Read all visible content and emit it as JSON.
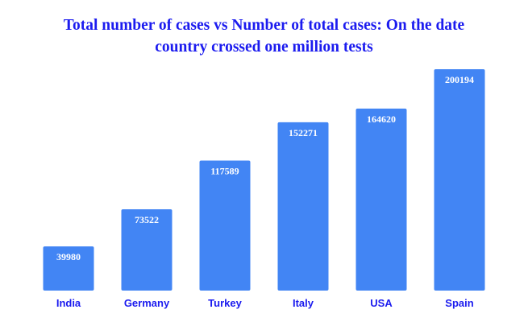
{
  "chart_data": {
    "type": "bar",
    "title_line1": "Total number of cases vs Number of total cases: On the date",
    "title_line2": "country crossed one million tests",
    "categories": [
      "India",
      "Germany",
      "Turkey",
      "Italy",
      "USA",
      "Spain"
    ],
    "values": [
      39980,
      73522,
      117589,
      152271,
      164620,
      200194
    ],
    "ylim": [
      0,
      200194
    ],
    "grid": false,
    "legend": "none",
    "bar_color": "#4285f4",
    "label_color": "#ffffff",
    "category_color": "#1b1bef",
    "title_color": "#1b1bef"
  }
}
